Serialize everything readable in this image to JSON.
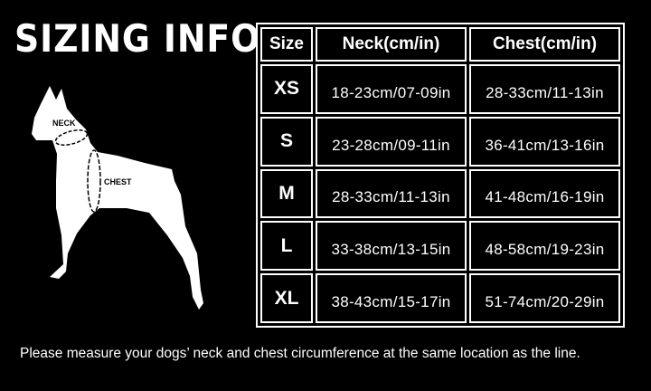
{
  "title": "SIZING INFO",
  "diagram": {
    "neck_label": "NECK",
    "chest_label": "CHEST"
  },
  "table": {
    "headers": [
      "Size",
      "Neck(cm/in)",
      "Chest(cm/in)"
    ],
    "rows": [
      {
        "size": "XS",
        "neck": "18-23cm/07-09in",
        "chest": "28-33cm/11-13in"
      },
      {
        "size": "S",
        "neck": "23-28cm/09-11in",
        "chest": "36-41cm/13-16in"
      },
      {
        "size": "M",
        "neck": "28-33cm/11-13in",
        "chest": "41-48cm/16-19in"
      },
      {
        "size": "L",
        "neck": "33-38cm/13-15in",
        "chest": "48-58cm/19-23in"
      },
      {
        "size": "XL",
        "neck": "38-43cm/15-17in",
        "chest": "51-74cm/20-29in"
      }
    ]
  },
  "note": "Please measure your dogs’  neck and chest circumference at the same location as the line."
}
